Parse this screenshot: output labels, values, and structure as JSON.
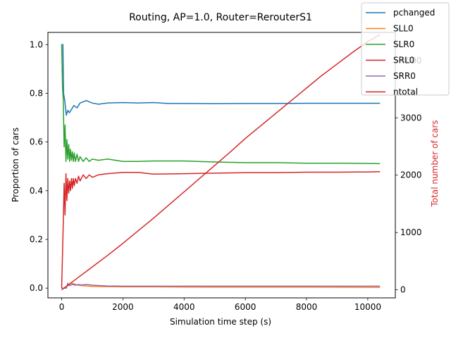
{
  "chart_data": {
    "type": "line",
    "title": "Routing, AP=1.0, Router=RerouterS1",
    "xlabel": "Simulation time step (s)",
    "ylabel_left": "Proportion of cars",
    "ylabel_right": "Total number of cars",
    "xlim": [
      -450,
      10900
    ],
    "ylim_left": [
      -0.04,
      1.05
    ],
    "ylim_right": [
      -140,
      4490
    ],
    "x_ticks": [
      0,
      2000,
      4000,
      6000,
      8000,
      10000
    ],
    "y_left_ticks": [
      0.0,
      0.2,
      0.4,
      0.6,
      0.8,
      1.0
    ],
    "y_right_ticks": [
      0,
      1000,
      2000,
      3000,
      4000
    ],
    "x_tick_labels": [
      "0",
      "2000",
      "4000",
      "6000",
      "8000",
      "10000"
    ],
    "y_left_tick_labels": [
      "0.0",
      "0.2",
      "0.4",
      "0.6",
      "0.8",
      "1.0"
    ],
    "y_right_tick_labels": [
      "0",
      "1000",
      "2000",
      "3000",
      "4000"
    ],
    "right_axis_color": "#d62728",
    "legend_position": "top-right",
    "series": [
      {
        "name": "pchanged",
        "color": "#1f77b4",
        "axis": "left",
        "x": [
          0,
          40,
          60,
          100,
          150,
          200,
          250,
          300,
          400,
          500,
          600,
          700,
          800,
          900,
          1000,
          1200,
          1500,
          2000,
          2500,
          3000,
          3500,
          4000,
          5000,
          6000,
          7000,
          8000,
          9000,
          10000,
          10400
        ],
        "y": [
          1.0,
          1.0,
          0.8,
          0.77,
          0.71,
          0.73,
          0.72,
          0.73,
          0.75,
          0.74,
          0.76,
          0.765,
          0.77,
          0.765,
          0.76,
          0.755,
          0.76,
          0.762,
          0.76,
          0.762,
          0.758,
          0.758,
          0.757,
          0.758,
          0.758,
          0.759,
          0.759,
          0.759,
          0.759
        ]
      },
      {
        "name": "SLL0",
        "color": "#ff7f0e",
        "axis": "left",
        "x": [
          0,
          100,
          200,
          300,
          400,
          500,
          700,
          1000,
          1500,
          2000,
          3000,
          5000,
          8000,
          10400
        ],
        "y": [
          0.0,
          0.0,
          0.01,
          0.02,
          0.018,
          0.013,
          0.01,
          0.007,
          0.006,
          0.005,
          0.005,
          0.004,
          0.004,
          0.003
        ]
      },
      {
        "name": "SLR0",
        "color": "#2ca02c",
        "axis": "left",
        "x": [
          0,
          30,
          50,
          80,
          110,
          140,
          170,
          200,
          230,
          260,
          290,
          320,
          350,
          380,
          410,
          450,
          500,
          550,
          600,
          700,
          800,
          900,
          1000,
          1200,
          1500,
          2000,
          2500,
          3000,
          4000,
          5000,
          6000,
          7000,
          8000,
          9000,
          10000,
          10400
        ],
        "y": [
          1.0,
          0.82,
          0.78,
          0.58,
          0.67,
          0.52,
          0.61,
          0.53,
          0.59,
          0.52,
          0.57,
          0.525,
          0.56,
          0.52,
          0.555,
          0.52,
          0.55,
          0.52,
          0.54,
          0.52,
          0.535,
          0.52,
          0.53,
          0.525,
          0.53,
          0.52,
          0.52,
          0.522,
          0.522,
          0.518,
          0.515,
          0.515,
          0.513,
          0.513,
          0.512,
          0.511
        ]
      },
      {
        "name": "SRL0",
        "color": "#d62728",
        "axis": "left",
        "x": [
          0,
          30,
          50,
          80,
          110,
          140,
          170,
          200,
          230,
          260,
          290,
          320,
          350,
          380,
          410,
          450,
          500,
          550,
          600,
          700,
          800,
          900,
          1000,
          1200,
          1500,
          2000,
          2500,
          3000,
          4000,
          5000,
          6000,
          7000,
          8000,
          9000,
          10000,
          10400
        ],
        "y": [
          0.0,
          0.15,
          0.26,
          0.43,
          0.3,
          0.47,
          0.36,
          0.45,
          0.39,
          0.44,
          0.4,
          0.45,
          0.41,
          0.45,
          0.42,
          0.45,
          0.43,
          0.46,
          0.44,
          0.465,
          0.45,
          0.465,
          0.455,
          0.465,
          0.47,
          0.475,
          0.475,
          0.468,
          0.47,
          0.472,
          0.474,
          0.474,
          0.476,
          0.476,
          0.477,
          0.478
        ]
      },
      {
        "name": "SRR0",
        "color": "#9467bd",
        "axis": "left",
        "x": [
          0,
          150,
          200,
          250,
          350,
          450,
          550,
          650,
          800,
          1000,
          1500,
          2000,
          3000,
          5000,
          8000,
          10400
        ],
        "y": [
          0.0,
          0.0,
          0.02,
          0.01,
          0.015,
          0.012,
          0.015,
          0.013,
          0.015,
          0.012,
          0.009,
          0.008,
          0.008,
          0.008,
          0.008,
          0.008
        ]
      },
      {
        "name": "ntotal",
        "color": "#d62728",
        "axis": "right",
        "x": [
          0,
          500,
          1000,
          1500,
          2000,
          2500,
          3000,
          3500,
          4000,
          4500,
          5000,
          5500,
          6000,
          6500,
          7000,
          7500,
          8000,
          8500,
          9000,
          9500,
          10000,
          10400
        ],
        "y": [
          0,
          200,
          400,
          600,
          810,
          1030,
          1250,
          1480,
          1710,
          1940,
          2170,
          2400,
          2640,
          2860,
          3080,
          3300,
          3520,
          3740,
          3940,
          4140,
          4330,
          4450
        ]
      }
    ]
  }
}
